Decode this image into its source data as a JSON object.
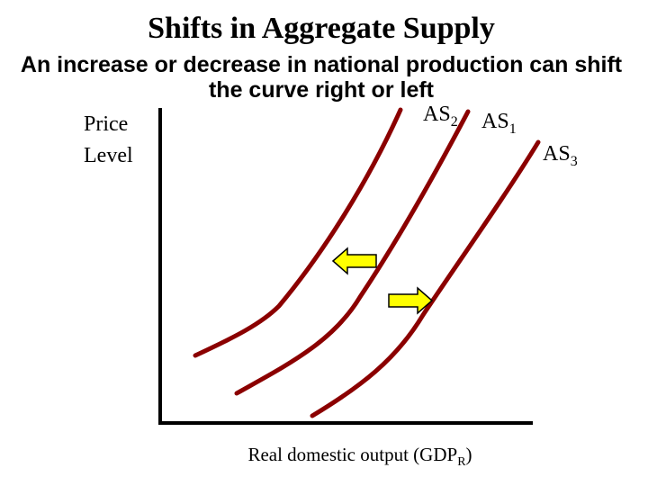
{
  "title": "Shifts in Aggregate Supply",
  "subtitle": [
    "An increase or decrease in national production can shift",
    "the curve right or left"
  ],
  "y_axis_label": [
    "Price",
    "Level"
  ],
  "x_axis_label": {
    "text": "Real domestic output (GDP",
    "subscript": "R",
    "suffix": ")"
  },
  "curves": [
    {
      "text": "AS",
      "subscript": "2"
    },
    {
      "text": "AS",
      "subscript": "1"
    },
    {
      "text": "AS",
      "subscript": "3"
    }
  ]
}
